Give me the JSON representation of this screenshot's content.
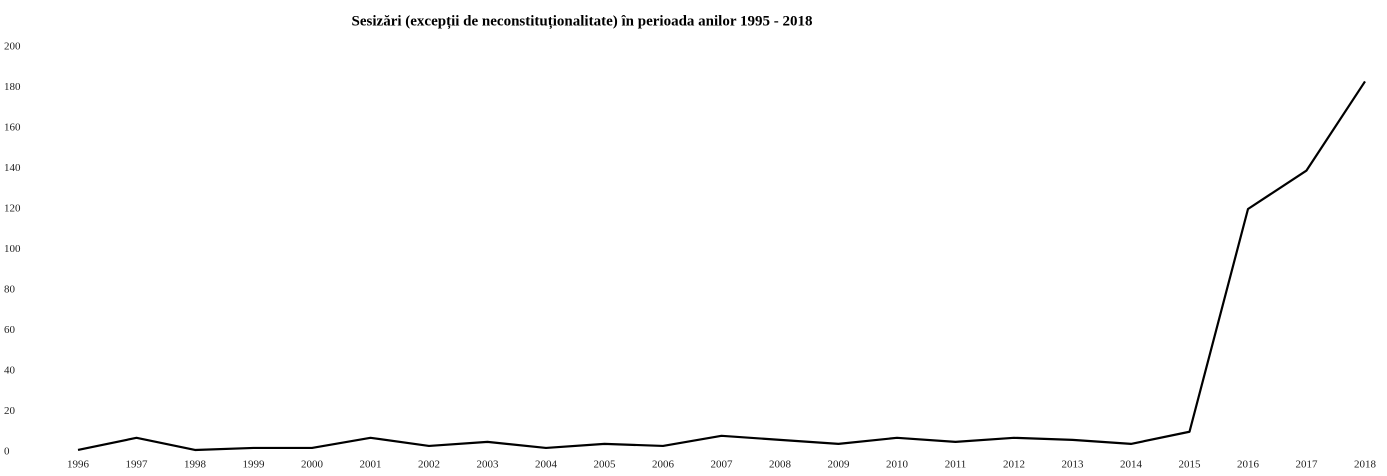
{
  "chart_data": {
    "type": "line",
    "title": "Sesizări (excepții de neconstituționalitate) în perioada anilor 1995 - 2018",
    "categories": [
      "1996",
      "1997",
      "1998",
      "1999",
      "2000",
      "2001",
      "2002",
      "2003",
      "2004",
      "2005",
      "2006",
      "2007",
      "2008",
      "2009",
      "2010",
      "2011",
      "2012",
      "2013",
      "2014",
      "2015",
      "2016",
      "2017",
      "2018"
    ],
    "series": [
      {
        "color": "#000000",
        "values": [
          1,
          7,
          1,
          2,
          2,
          7,
          3,
          5,
          2,
          4,
          3,
          8,
          6,
          4,
          7,
          5,
          7,
          6,
          4,
          10,
          120,
          139,
          183
        ]
      }
    ],
    "ylim": [
      0,
      200
    ],
    "yticks": [
      0,
      20,
      40,
      60,
      80,
      100,
      120,
      140,
      160,
      180,
      200
    ],
    "grid": false
  }
}
